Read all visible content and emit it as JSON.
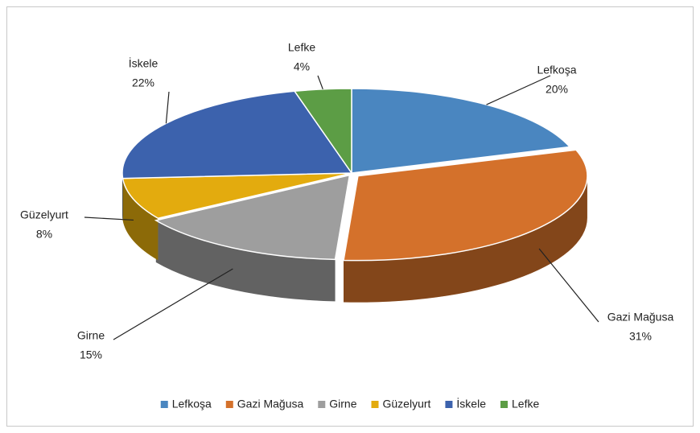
{
  "chart_data": {
    "type": "pie3d",
    "categories": [
      "Lefkoşa",
      "Gazi Mağusa",
      "Girne",
      "Güzelyurt",
      "İskele",
      "Lefke"
    ],
    "values": [
      20,
      31,
      15,
      8,
      22,
      4
    ],
    "value_labels": [
      "20%",
      "31%",
      "15%",
      "8%",
      "22%",
      "4%"
    ],
    "colors": [
      "#4a86c0",
      "#d4712b",
      "#9e9e9e",
      "#e3ab0e",
      "#3c62ad",
      "#5c9d45"
    ],
    "legend": "bottom"
  }
}
